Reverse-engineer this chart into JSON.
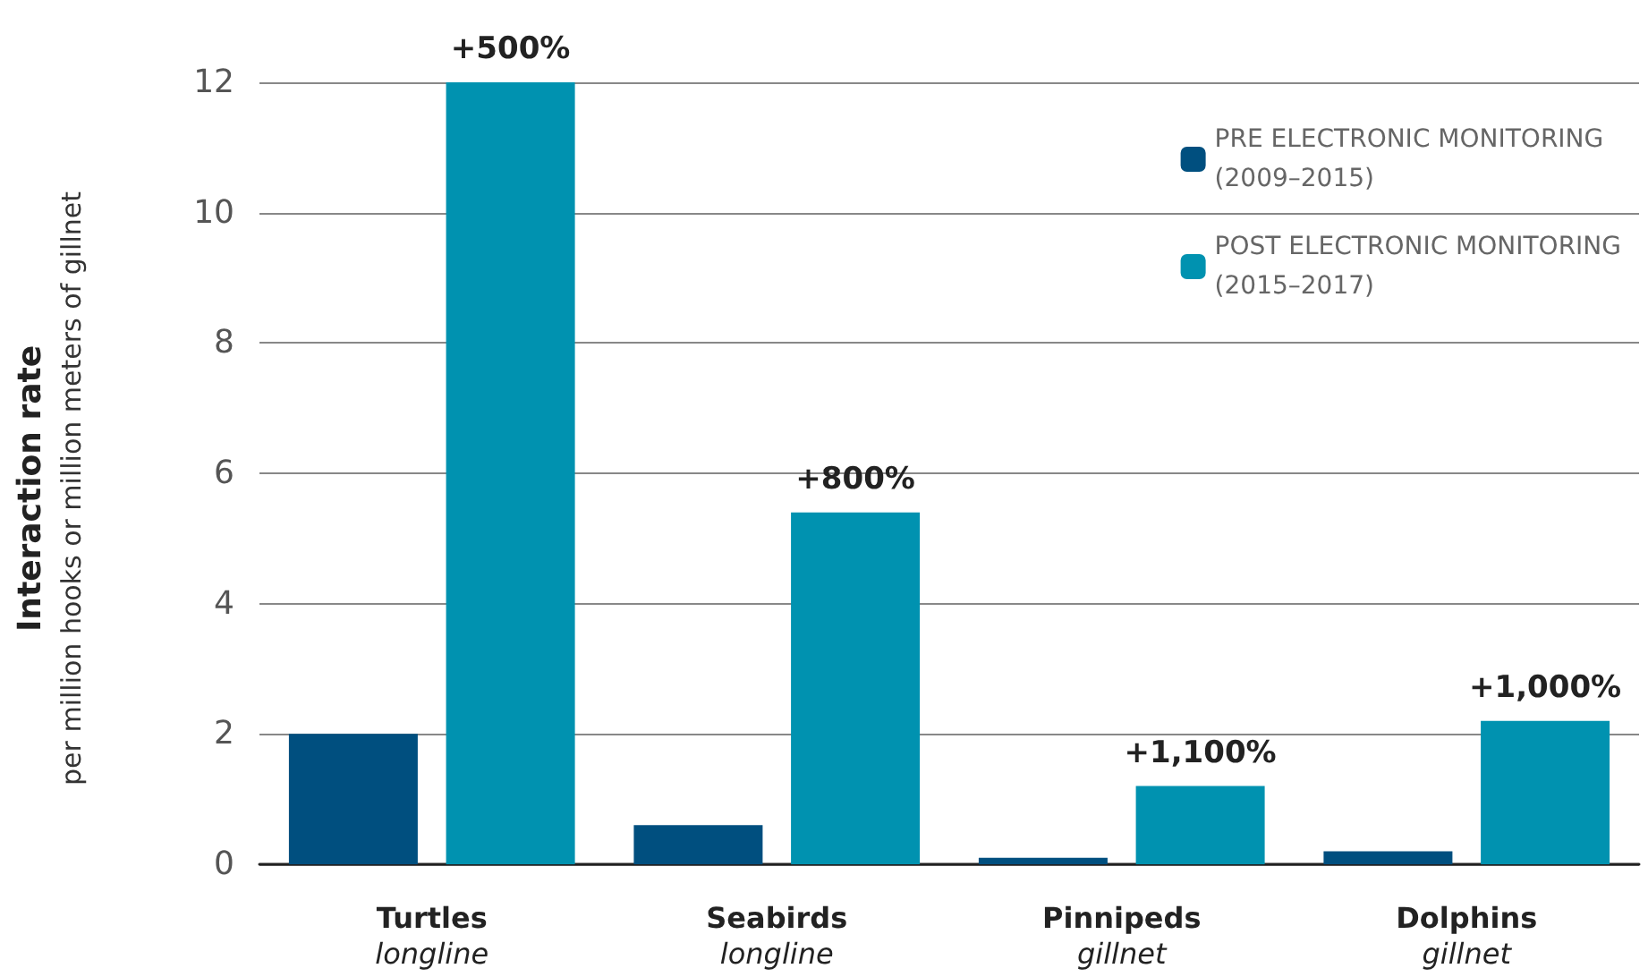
{
  "chart_data": {
    "type": "bar",
    "ylabel": "Interaction rate\nper million hooks or million meters of gillnet",
    "categories": [
      "Turtles\nlongline",
      "Seabirds\nlongline",
      "Pinnipeds\ngillnet",
      "Dolphins\ngillnet"
    ],
    "series": [
      {
        "name": "PRE ELECTRONIC MONITORING\n(2009–2015)",
        "color": "#004f7f",
        "values": [
          2,
          0.6,
          0.1,
          0.2
        ]
      },
      {
        "name": "POST ELECTRONIC MONITORING\n(2015–2017)",
        "color": "#0092b0",
        "values": [
          12,
          5.4,
          1.2,
          2.2
        ]
      }
    ],
    "annotations": [
      "+500%",
      "+800%",
      "+1,100%",
      "+1,000%"
    ],
    "ylim": [
      0,
      12
    ],
    "yticks": [
      0,
      2,
      4,
      6,
      8,
      10,
      12
    ],
    "grid": "y",
    "legend": "top right"
  }
}
